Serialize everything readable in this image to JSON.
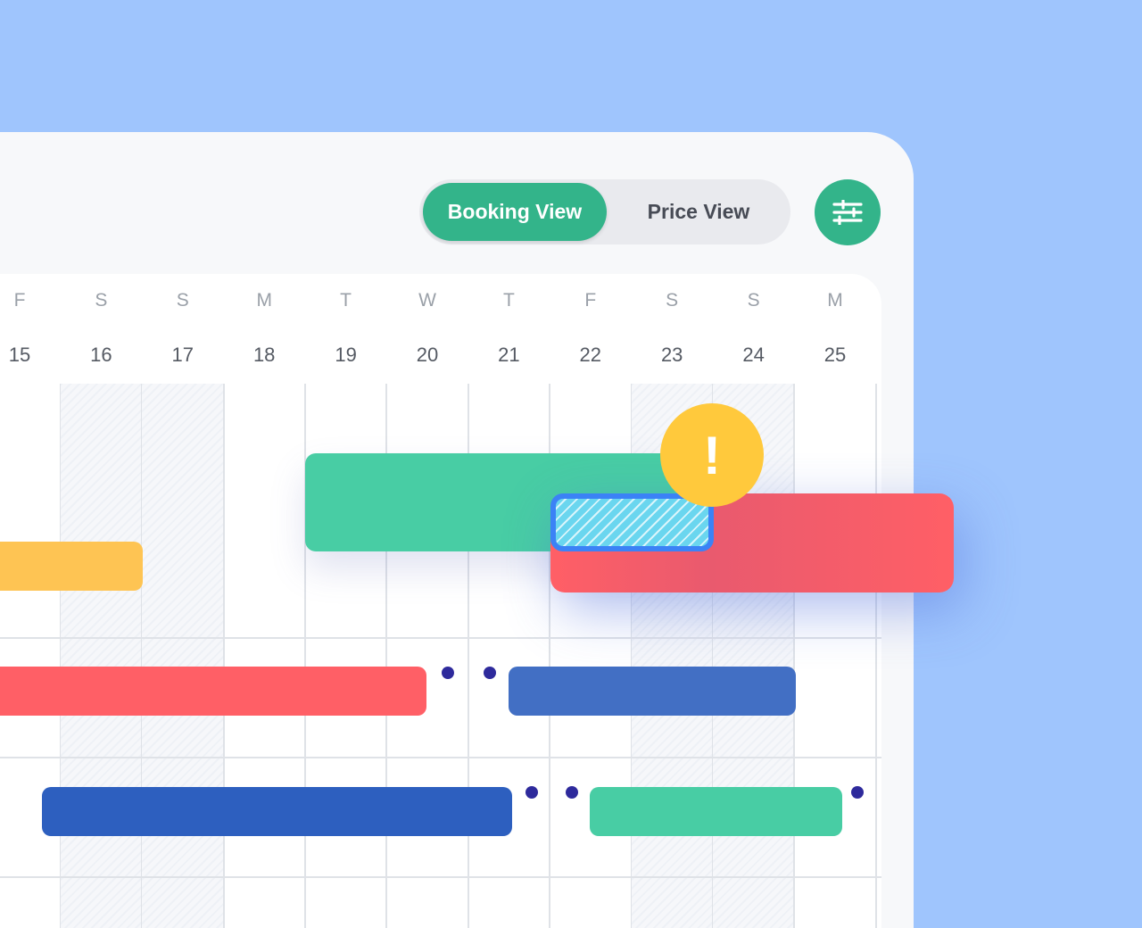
{
  "toolbar": {
    "booking_view_label": "Booking View",
    "price_view_label": "Price View",
    "active_view": "Booking View",
    "filter_icon": "sliders-icon"
  },
  "calendar": {
    "days": [
      {
        "dow": "F",
        "date": "15",
        "weekend": false
      },
      {
        "dow": "S",
        "date": "16",
        "weekend": true
      },
      {
        "dow": "S",
        "date": "17",
        "weekend": true
      },
      {
        "dow": "M",
        "date": "18",
        "weekend": false
      },
      {
        "dow": "T",
        "date": "19",
        "weekend": false
      },
      {
        "dow": "W",
        "date": "20",
        "weekend": false
      },
      {
        "dow": "T",
        "date": "21",
        "weekend": false
      },
      {
        "dow": "F",
        "date": "22",
        "weekend": false
      },
      {
        "dow": "S",
        "date": "23",
        "weekend": true
      },
      {
        "dow": "S",
        "date": "24",
        "weekend": true
      },
      {
        "dow": "M",
        "date": "25",
        "weekend": false
      }
    ]
  },
  "colors": {
    "green": "#48cda4",
    "red": "#ff5f66",
    "yellow": "#fec453",
    "blue": "#426fc4",
    "dark_blue": "#2d5fbf",
    "warning": "#ffc93c",
    "overlap_border": "#3b82f6",
    "accent": "#33b48a"
  },
  "warning": {
    "icon": "exclamation-icon",
    "symbol": "!"
  }
}
